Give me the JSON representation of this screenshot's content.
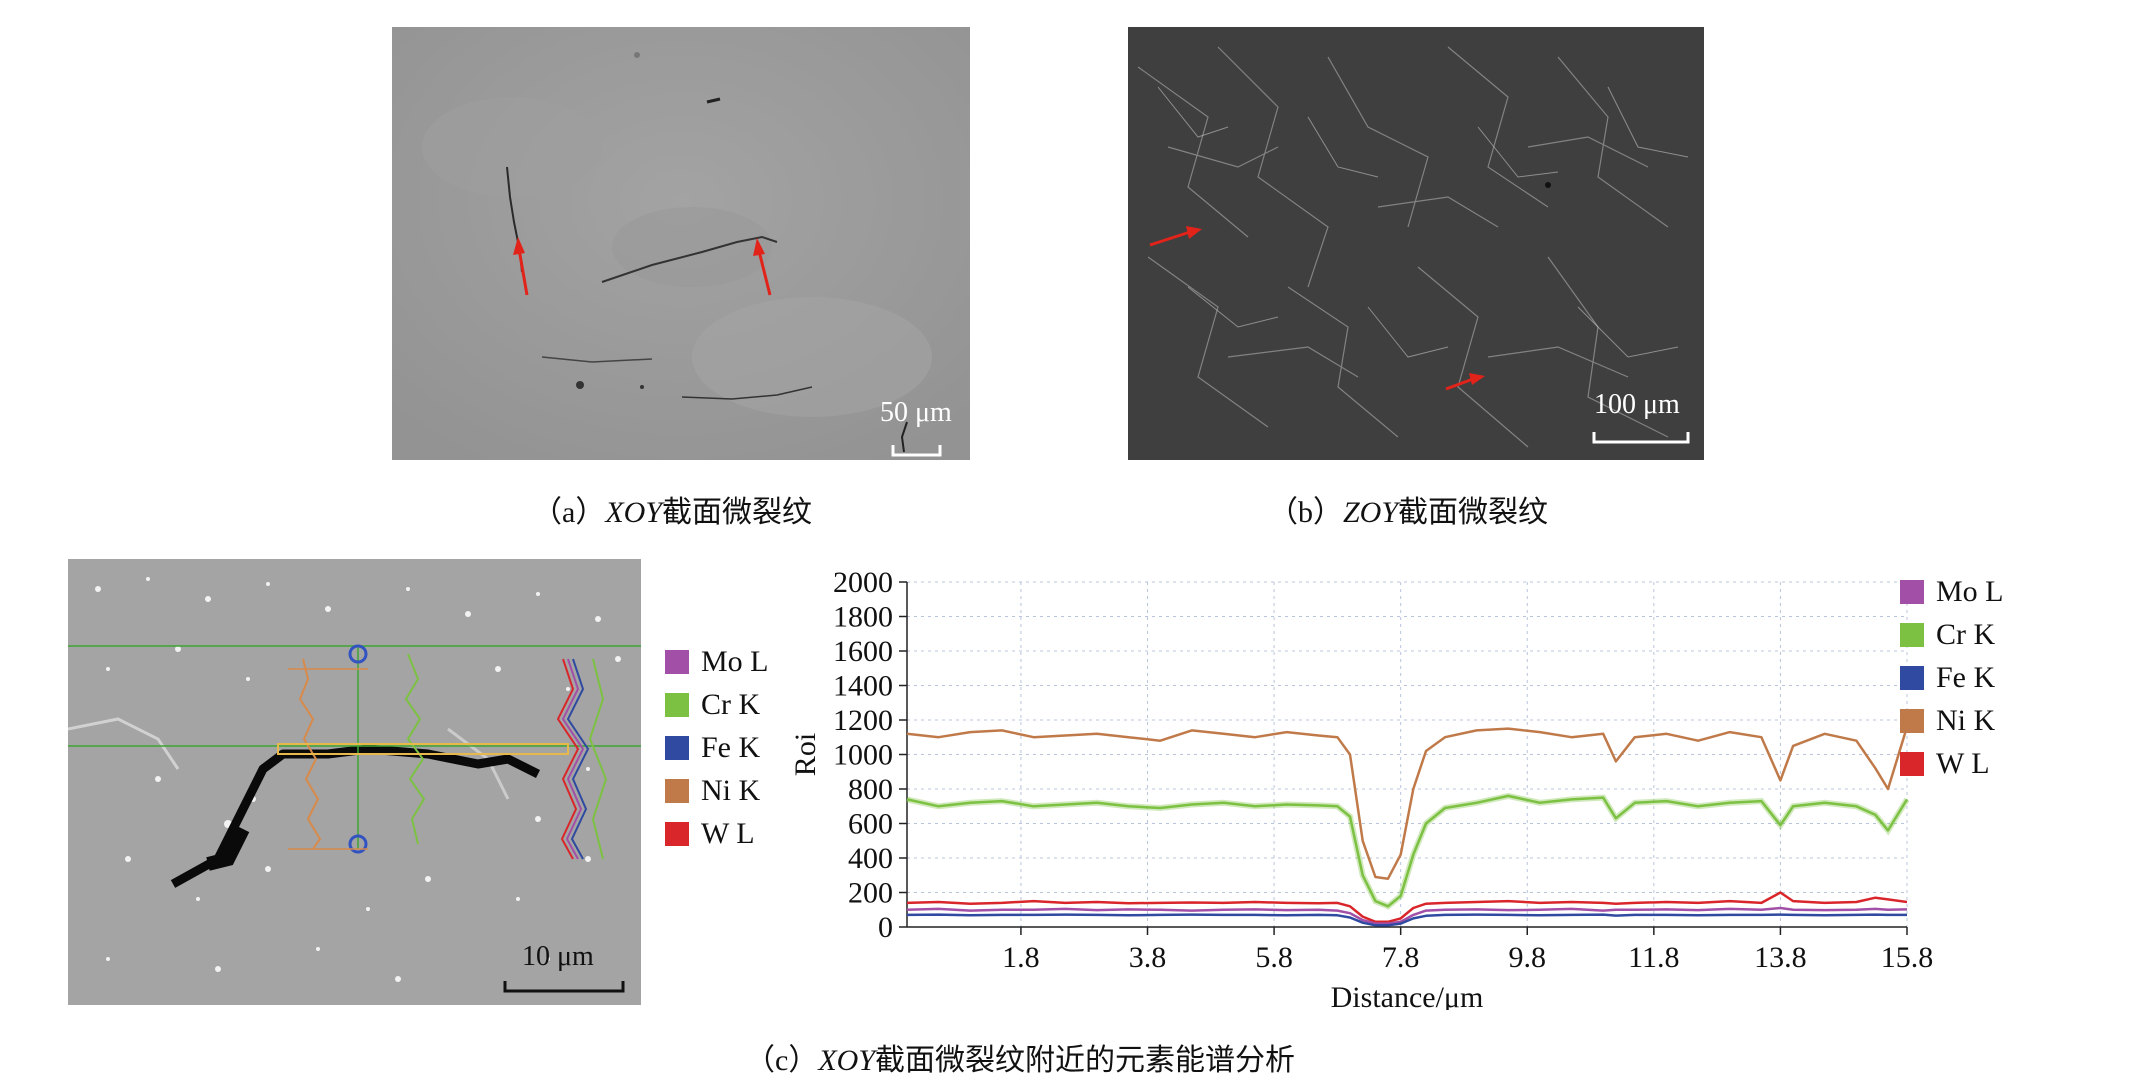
{
  "panel_a": {
    "scalebar_label": "50 μm",
    "caption_open": "（a）",
    "caption_italic": "XOY",
    "caption_rest": "截面微裂纹"
  },
  "panel_b": {
    "scalebar_label": "100 μm",
    "caption_open": "（b）",
    "caption_italic": "ZOY",
    "caption_rest": "截面微裂纹"
  },
  "panel_c": {
    "scalebar_label": "10 μm",
    "caption_open": "（c）",
    "caption_italic": "XOY",
    "caption_rest": "截面微裂纹附近的元素能谱分析",
    "left_legend": [
      {
        "label": "Mo L",
        "color": "#a24fa8"
      },
      {
        "label": "Cr K",
        "color": "#7cc142"
      },
      {
        "label": "Fe K",
        "color": "#2f4aa0"
      },
      {
        "label": "Ni K",
        "color": "#c07a4a"
      },
      {
        "label": "W L",
        "color": "#d8262b"
      }
    ]
  },
  "chart_data": {
    "type": "line",
    "xlabel": "Distance/μm",
    "ylabel": "Roi",
    "xlim": [
      0,
      15.8
    ],
    "ylim": [
      0,
      2000
    ],
    "x_ticks": [
      1.8,
      3.8,
      5.8,
      7.8,
      9.8,
      11.8,
      13.8,
      15.8
    ],
    "y_ticks": [
      0,
      200,
      400,
      600,
      800,
      1000,
      1200,
      1400,
      1600,
      1800,
      2000
    ],
    "grid": true,
    "legend_position": "right",
    "x": [
      0,
      0.5,
      1,
      1.5,
      2,
      2.5,
      3,
      3.5,
      4,
      4.5,
      5,
      5.5,
      6,
      6.5,
      6.8,
      7,
      7.2,
      7.4,
      7.6,
      7.8,
      8,
      8.2,
      8.5,
      9,
      9.5,
      10,
      10.5,
      11,
      11.2,
      11.5,
      12,
      12.5,
      13,
      13.5,
      13.8,
      14,
      14.5,
      15,
      15.3,
      15.5,
      15.8
    ],
    "series": [
      {
        "name": "Mo L",
        "color": "#a24fa8",
        "values": [
          100,
          105,
          95,
          100,
          100,
          105,
          98,
          102,
          100,
          95,
          100,
          102,
          98,
          100,
          95,
          80,
          40,
          20,
          20,
          30,
          70,
          95,
          100,
          102,
          98,
          100,
          105,
          95,
          100,
          100,
          102,
          98,
          105,
          100,
          110,
          100,
          98,
          100,
          105,
          100,
          102
        ]
      },
      {
        "name": "Cr K",
        "color": "#7cc142",
        "values": [
          740,
          700,
          720,
          730,
          700,
          710,
          720,
          700,
          690,
          710,
          720,
          700,
          710,
          705,
          700,
          640,
          300,
          150,
          120,
          180,
          420,
          600,
          690,
          720,
          760,
          720,
          740,
          750,
          630,
          720,
          730,
          700,
          720,
          730,
          590,
          700,
          720,
          700,
          650,
          560,
          740
        ]
      },
      {
        "name": "Ni K",
        "color": "#c07a4a",
        "values": [
          1120,
          1100,
          1130,
          1140,
          1100,
          1110,
          1120,
          1100,
          1080,
          1140,
          1120,
          1100,
          1130,
          1110,
          1100,
          1000,
          500,
          290,
          280,
          420,
          800,
          1020,
          1100,
          1140,
          1150,
          1130,
          1100,
          1120,
          960,
          1100,
          1120,
          1080,
          1130,
          1100,
          850,
          1050,
          1120,
          1080,
          920,
          800,
          1160
        ]
      },
      {
        "name": "Fe K",
        "color": "#2f4aa0",
        "values": [
          70,
          72,
          68,
          70,
          70,
          72,
          70,
          68,
          70,
          72,
          70,
          70,
          68,
          70,
          68,
          55,
          25,
          10,
          10,
          20,
          50,
          65,
          70,
          72,
          70,
          68,
          70,
          72,
          66,
          70,
          70,
          68,
          70,
          70,
          72,
          70,
          68,
          70,
          72,
          70,
          70
        ]
      },
      {
        "name": "W L",
        "color": "#d8262b",
        "values": [
          140,
          145,
          135,
          140,
          150,
          140,
          145,
          138,
          140,
          142,
          140,
          145,
          140,
          138,
          140,
          120,
          60,
          30,
          30,
          50,
          110,
          135,
          140,
          145,
          150,
          140,
          145,
          140,
          135,
          140,
          145,
          140,
          150,
          140,
          200,
          150,
          140,
          145,
          170,
          160,
          145
        ]
      }
    ]
  }
}
